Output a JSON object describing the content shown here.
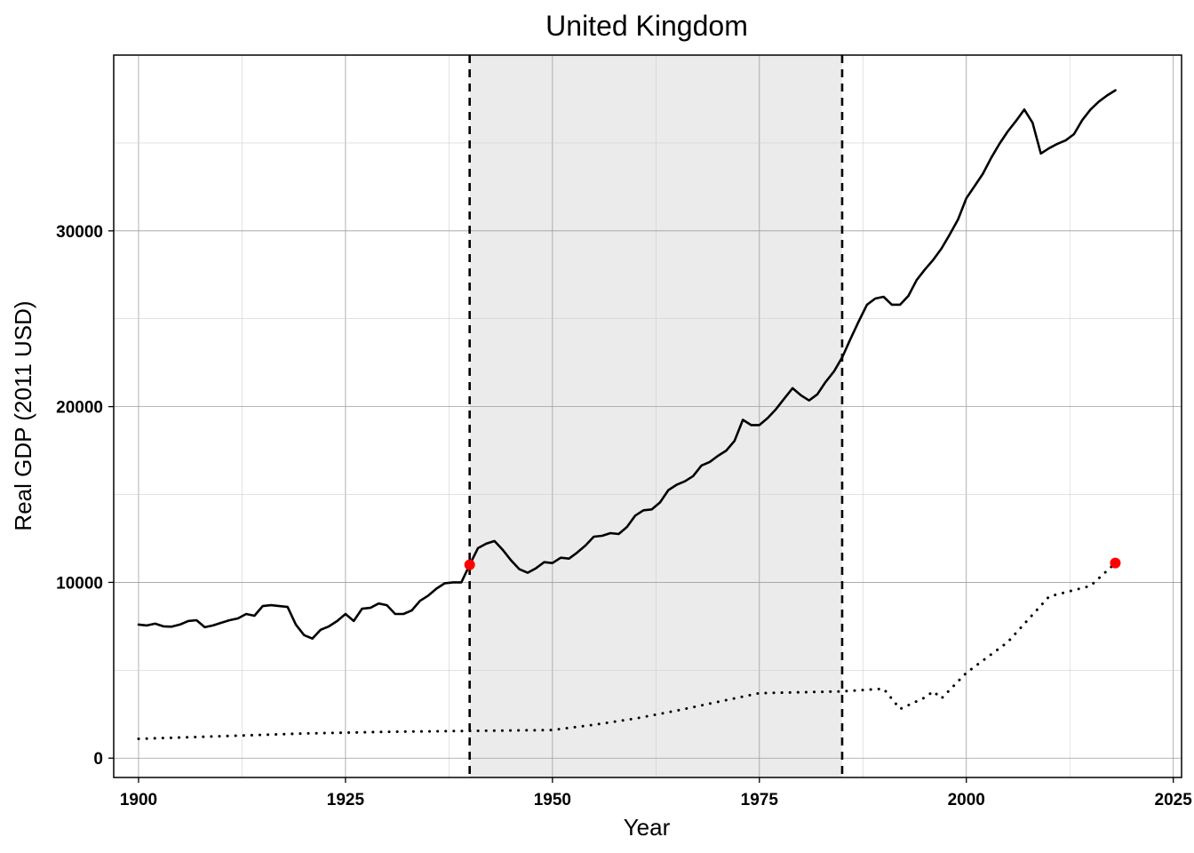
{
  "chart_data": {
    "type": "line",
    "title": "United Kingdom",
    "xlabel": "Year",
    "ylabel": "Real GDP (2011 USD)",
    "xlim": [
      1897,
      2026
    ],
    "ylim": [
      -1100,
      40000
    ],
    "x_ticks": [
      1900,
      1925,
      1950,
      1975,
      2000,
      2025
    ],
    "y_ticks": [
      0,
      10000,
      20000,
      30000
    ],
    "grid": true,
    "shaded_region": {
      "x": [
        1940,
        1985
      ],
      "color": "#ebebeb"
    },
    "vlines": [
      1940,
      1985
    ],
    "series": [
      {
        "style": "solid",
        "color": "#000000",
        "x": [
          1900,
          1901,
          1902,
          1903,
          1904,
          1905,
          1906,
          1907,
          1908,
          1909,
          1910,
          1911,
          1912,
          1913,
          1914,
          1915,
          1916,
          1917,
          1918,
          1919,
          1920,
          1921,
          1922,
          1923,
          1924,
          1925,
          1926,
          1927,
          1928,
          1929,
          1930,
          1931,
          1932,
          1933,
          1934,
          1935,
          1936,
          1937,
          1938,
          1939,
          1940,
          1941,
          1942,
          1943,
          1944,
          1945,
          1946,
          1947,
          1948,
          1949,
          1950,
          1951,
          1952,
          1953,
          1954,
          1955,
          1956,
          1957,
          1958,
          1959,
          1960,
          1961,
          1962,
          1963,
          1964,
          1965,
          1966,
          1967,
          1968,
          1969,
          1970,
          1971,
          1972,
          1973,
          1974,
          1975,
          1976,
          1977,
          1978,
          1979,
          1980,
          1981,
          1982,
          1983,
          1984,
          1985,
          1986,
          1987,
          1988,
          1989,
          1990,
          1991,
          1992,
          1993,
          1994,
          1995,
          1996,
          1997,
          1998,
          1999,
          2000,
          2001,
          2002,
          2003,
          2004,
          2005,
          2006,
          2007,
          2008,
          2009,
          2010,
          2011,
          2012,
          2013,
          2014,
          2015,
          2016,
          2017,
          2018
        ],
        "y": [
          7600,
          7550,
          7650,
          7500,
          7480,
          7600,
          7800,
          7850,
          7450,
          7550,
          7700,
          7850,
          7950,
          8200,
          8100,
          8650,
          8700,
          8650,
          8600,
          7600,
          7000,
          6800,
          7300,
          7500,
          7800,
          8200,
          7800,
          8500,
          8550,
          8800,
          8700,
          8200,
          8200,
          8400,
          8950,
          9250,
          9650,
          9950,
          10000,
          10000,
          11000,
          11950,
          12200,
          12350,
          11850,
          11250,
          10750,
          10550,
          10800,
          11150,
          11100,
          11400,
          11350,
          11700,
          12100,
          12600,
          12650,
          12800,
          12750,
          13150,
          13800,
          14100,
          14150,
          14550,
          15250,
          15550,
          15750,
          16050,
          16650,
          16850,
          17200,
          17500,
          18050,
          19250,
          18950,
          18950,
          19350,
          19850,
          20450,
          21050,
          20650,
          20350,
          20700,
          21400,
          22000,
          22800,
          23850,
          24850,
          25800,
          26150,
          26250,
          25800,
          25800,
          26300,
          27200,
          27800,
          28350,
          29000,
          29800,
          30650,
          31850,
          32550,
          33250,
          34150,
          34950,
          35650,
          36250,
          36900,
          36150,
          34400,
          34700,
          34950,
          35150,
          35500,
          36300,
          36900,
          37350,
          37700,
          38000
        ]
      },
      {
        "style": "dotted",
        "color": "#000000",
        "x": [
          1900,
          1910,
          1920,
          1930,
          1940,
          1950,
          1955,
          1960,
          1965,
          1970,
          1975,
          1980,
          1985,
          1990,
          1992,
          1995,
          1996,
          1997,
          2000,
          2005,
          2010,
          2015,
          2018
        ],
        "y": [
          1100,
          1250,
          1400,
          1500,
          1550,
          1600,
          1900,
          2250,
          2700,
          3200,
          3700,
          3750,
          3800,
          3950,
          2800,
          3450,
          3800,
          3400,
          4850,
          6600,
          9200,
          9800,
          11100
        ]
      }
    ],
    "points": [
      {
        "x": 1940,
        "y": 11000,
        "color": "#ff0000"
      },
      {
        "x": 2018,
        "y": 11100,
        "color": "#ff0000"
      }
    ]
  }
}
